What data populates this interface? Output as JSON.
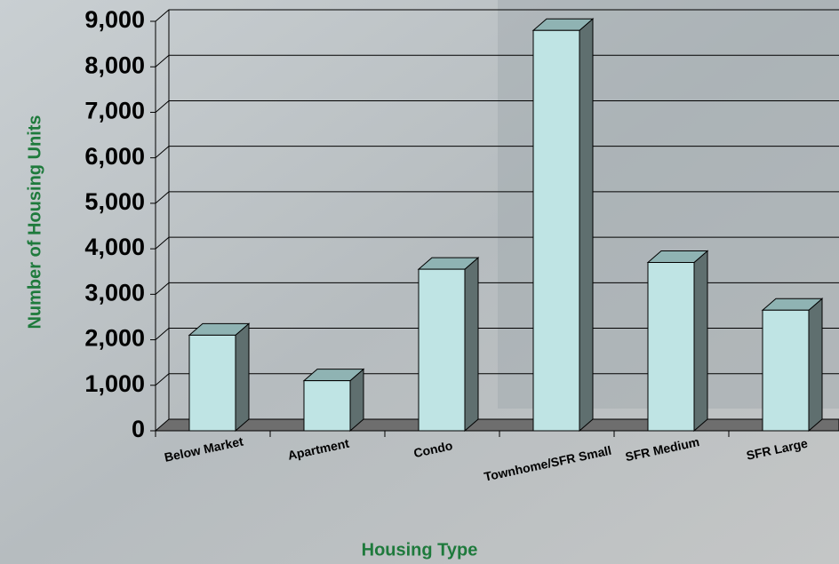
{
  "chart_data": {
    "type": "bar3d",
    "x_label": "Housing Type",
    "y_label": "Number of Housing Units",
    "categories": [
      "Below Market",
      "Apartment",
      "Condo",
      "Townhome/SFR Small",
      "SFR Medium",
      "SFR Large"
    ],
    "values": [
      2100,
      1100,
      3550,
      8800,
      3700,
      2650
    ],
    "color": "#bfe4e4",
    "ylim": [
      0,
      9000
    ],
    "yticks": [
      0,
      {
        "value": 1000,
        "label": "1,000"
      },
      {
        "value": 2000,
        "label": "2,000"
      },
      {
        "value": 3000,
        "label": "3,000"
      },
      {
        "value": 4000,
        "label": "4,000"
      },
      {
        "value": 5000,
        "label": "5,000"
      },
      {
        "value": 6000,
        "label": "6,000"
      },
      {
        "value": 7000,
        "label": "7,000"
      },
      {
        "value": 8000,
        "label": "8,000"
      },
      {
        "value": 9000,
        "label": "9,000"
      }
    ],
    "grid": true
  }
}
